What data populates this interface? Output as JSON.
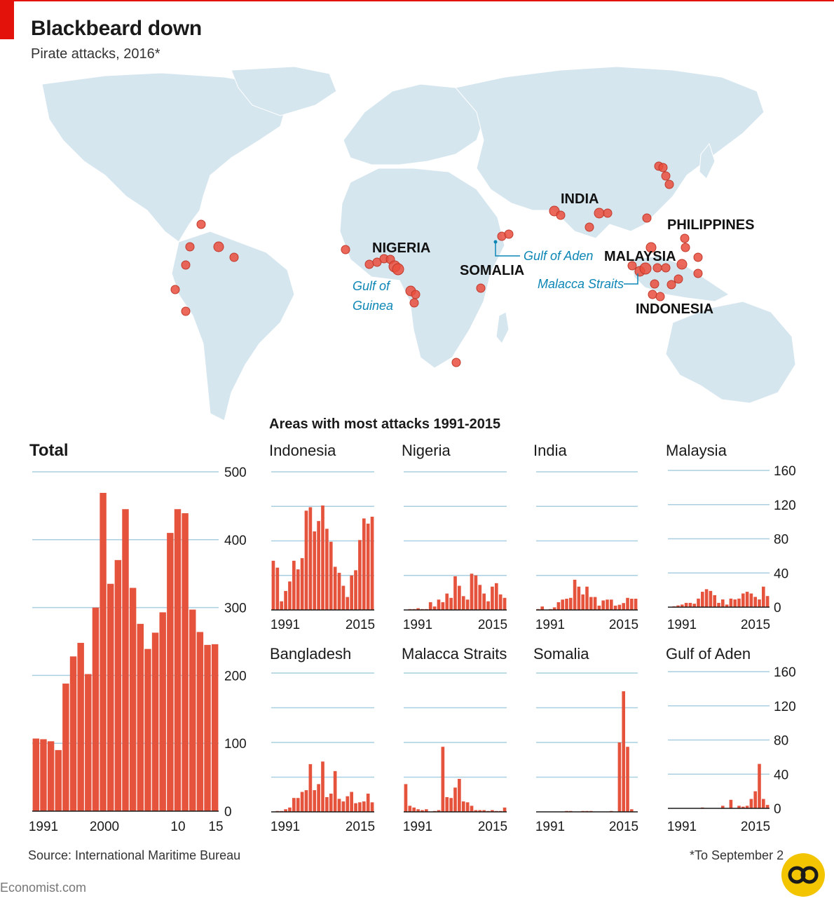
{
  "header": {
    "title": "Blackbeard down",
    "subtitle": "Pirate attacks, 2016*",
    "section_title": "Areas with most attacks 1991-2015"
  },
  "map": {
    "labels": {
      "nigeria": "NIGERIA",
      "somalia": "SOMALIA",
      "india": "INDIA",
      "malaysia": "MALAYSIA",
      "philippines": "PHILIPPINES",
      "indonesia": "INDONESIA",
      "gulf_of_aden": "Gulf of Aden",
      "gulf_of_guinea_1": "Gulf of",
      "gulf_of_guinea_2": "Guinea",
      "malacca": "Malacca Straits"
    },
    "colors": {
      "land": "#d6e6ef",
      "attack": "#e94d3d",
      "callout": "#0c86b5"
    }
  },
  "chart_data": [
    {
      "type": "bar",
      "title": "Total",
      "xlabel": "",
      "ylabel": "",
      "ylim": [
        0,
        500
      ],
      "yticks": [
        0,
        100,
        200,
        300,
        400,
        500
      ],
      "xticks": [
        "1991",
        "2000",
        "10",
        "15"
      ],
      "x": [
        1991,
        1992,
        1993,
        1994,
        1995,
        1996,
        1997,
        1998,
        1999,
        2000,
        2001,
        2002,
        2003,
        2004,
        2005,
        2006,
        2007,
        2008,
        2009,
        2010,
        2011,
        2012,
        2013,
        2014,
        2015
      ],
      "values": [
        107,
        106,
        103,
        90,
        188,
        228,
        248,
        202,
        300,
        469,
        335,
        370,
        445,
        329,
        276,
        239,
        263,
        293,
        410,
        445,
        439,
        297,
        264,
        245,
        246
      ]
    },
    {
      "type": "bar",
      "title": "Indonesia",
      "ylim": [
        0,
        160
      ],
      "xticks": [
        "1991",
        "2015"
      ],
      "x": [
        1991,
        1992,
        1993,
        1994,
        1995,
        1996,
        1997,
        1998,
        1999,
        2000,
        2001,
        2002,
        2003,
        2004,
        2005,
        2006,
        2007,
        2008,
        2009,
        2010,
        2011,
        2012,
        2013,
        2014,
        2015
      ],
      "values": [
        57,
        49,
        10,
        22,
        33,
        57,
        47,
        60,
        115,
        119,
        91,
        103,
        121,
        94,
        79,
        50,
        43,
        28,
        15,
        40,
        46,
        81,
        106,
        100,
        108
      ]
    },
    {
      "type": "bar",
      "title": "Nigeria",
      "ylim": [
        0,
        160
      ],
      "xticks": [
        "1991",
        "2015"
      ],
      "x": [
        1991,
        1992,
        1993,
        1994,
        1995,
        1996,
        1997,
        1998,
        1999,
        2000,
        2001,
        2002,
        2003,
        2004,
        2005,
        2006,
        2007,
        2008,
        2009,
        2010,
        2011,
        2012,
        2013,
        2014,
        2015
      ],
      "values": [
        0,
        1,
        1,
        2,
        1,
        1,
        9,
        4,
        12,
        9,
        19,
        14,
        39,
        28,
        16,
        12,
        42,
        40,
        29,
        19,
        10,
        27,
        31,
        18,
        14
      ]
    },
    {
      "type": "bar",
      "title": "India",
      "ylim": [
        0,
        160
      ],
      "xticks": [
        "1991",
        "2015"
      ],
      "x": [
        1991,
        1992,
        1993,
        1994,
        1995,
        1996,
        1997,
        1998,
        1999,
        2000,
        2001,
        2002,
        2003,
        2004,
        2005,
        2006,
        2007,
        2008,
        2009,
        2010,
        2011,
        2012,
        2013,
        2014,
        2015
      ],
      "values": [
        1,
        4,
        0,
        1,
        3,
        9,
        12,
        13,
        14,
        35,
        27,
        18,
        27,
        15,
        15,
        5,
        11,
        12,
        12,
        5,
        6,
        8,
        14,
        13,
        13
      ]
    },
    {
      "type": "bar",
      "title": "Malaysia",
      "ylim": [
        0,
        160
      ],
      "yticks": [
        0,
        40,
        80,
        120,
        160
      ],
      "xticks": [
        "1991",
        "2015"
      ],
      "x": [
        1991,
        1992,
        1993,
        1994,
        1995,
        1996,
        1997,
        1998,
        1999,
        2000,
        2001,
        2002,
        2003,
        2004,
        2005,
        2006,
        2007,
        2008,
        2009,
        2010,
        2011,
        2012,
        2013,
        2014,
        2015
      ],
      "values": [
        0,
        1,
        2,
        3,
        5,
        5,
        4,
        10,
        18,
        21,
        19,
        14,
        5,
        9,
        3,
        10,
        9,
        10,
        16,
        18,
        16,
        12,
        9,
        24,
        13
      ]
    },
    {
      "type": "bar",
      "title": "Bangladesh",
      "ylim": [
        0,
        160
      ],
      "xticks": [
        "1991",
        "2015"
      ],
      "x": [
        1991,
        1992,
        1993,
        1994,
        1995,
        1996,
        1997,
        1998,
        1999,
        2000,
        2001,
        2002,
        2003,
        2004,
        2005,
        2006,
        2007,
        2008,
        2009,
        2010,
        2011,
        2012,
        2013,
        2014,
        2015
      ],
      "values": [
        0,
        1,
        1,
        3,
        5,
        16,
        16,
        23,
        25,
        55,
        25,
        32,
        58,
        17,
        21,
        47,
        15,
        12,
        18,
        23,
        10,
        11,
        12,
        21,
        11
      ]
    },
    {
      "type": "bar",
      "title": "Malacca Straits",
      "ylim": [
        0,
        160
      ],
      "xticks": [
        "1991",
        "2015"
      ],
      "x": [
        1991,
        1992,
        1993,
        1994,
        1995,
        1996,
        1997,
        1998,
        1999,
        2000,
        2001,
        2002,
        2003,
        2004,
        2005,
        2006,
        2007,
        2008,
        2009,
        2010,
        2011,
        2012,
        2013,
        2014,
        2015
      ],
      "values": [
        32,
        7,
        5,
        3,
        2,
        3,
        0,
        1,
        2,
        75,
        17,
        16,
        28,
        38,
        12,
        11,
        7,
        2,
        2,
        2,
        1,
        2,
        1,
        1,
        5
      ]
    },
    {
      "type": "bar",
      "title": "Somalia",
      "ylim": [
        0,
        160
      ],
      "xticks": [
        "1991",
        "2015"
      ],
      "x": [
        1991,
        1992,
        1993,
        1994,
        1995,
        1996,
        1997,
        1998,
        1999,
        2000,
        2001,
        2002,
        2003,
        2004,
        2005,
        2006,
        2007,
        2008,
        2009,
        2010,
        2011,
        2012,
        2013,
        2014,
        2015
      ],
      "values": [
        0,
        0,
        0,
        0,
        0,
        0,
        0,
        1,
        1,
        0,
        0,
        1,
        1,
        1,
        0,
        0,
        0,
        0,
        1,
        0,
        80,
        139,
        75,
        3,
        0
      ]
    },
    {
      "type": "bar",
      "title": "Gulf of Aden",
      "ylim": [
        0,
        160
      ],
      "yticks": [
        0,
        40,
        80,
        120,
        160
      ],
      "xticks": [
        "1991",
        "2015"
      ],
      "x": [
        1991,
        1992,
        1993,
        1994,
        1995,
        1996,
        1997,
        1998,
        1999,
        2000,
        2001,
        2002,
        2003,
        2004,
        2005,
        2006,
        2007,
        2008,
        2009,
        2010,
        2011,
        2012,
        2013,
        2014,
        2015
      ],
      "values": [
        0,
        0,
        0,
        0,
        0,
        0,
        0,
        0,
        1,
        0,
        0,
        0,
        0,
        3,
        0,
        10,
        0,
        3,
        2,
        3,
        11,
        20,
        52,
        11,
        4
      ]
    }
  ],
  "footer": {
    "source": "Source: International Maritime Bureau",
    "footnote": "*To September 2",
    "site": "Economist.com"
  }
}
